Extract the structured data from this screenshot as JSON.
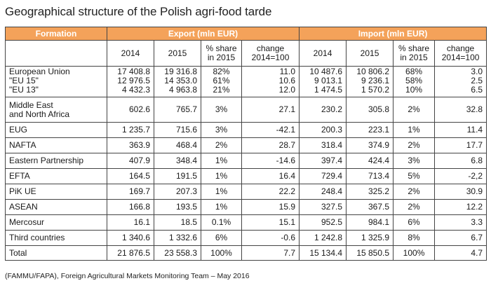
{
  "title": "Geographical structure of the Polish agri-food tarde",
  "header": {
    "formation": "Formation",
    "export": "Export (mln EUR)",
    "import": "Import (mln EUR)"
  },
  "subheader": {
    "y2014": "2014",
    "y2015": "2015",
    "share": "% share in 2015",
    "change": "change 2014=100"
  },
  "rows": [
    {
      "label": "European Union\n\"EU 15\"\n\"EU 13\"",
      "exp2014": "17 408.8\n12 976.5\n4 432.3",
      "exp2015": "19 316.8\n14 353.0\n4 963.8",
      "expShare": "82%\n61%\n21%",
      "expChange": "11.0\n10.6\n12.0",
      "imp2014": "10 487.6\n9 013.1\n1 474.5",
      "imp2015": "10 806.2\n9 236.1\n1 570.2",
      "impShare": "68%\n58%\n10%",
      "impChange": "3.0\n2.5\n6.5"
    },
    {
      "label": "Middle East\nand North Africa",
      "exp2014": "602.6",
      "exp2015": "765.7",
      "expShare": "3%",
      "expChange": "27.1",
      "imp2014": "230.2",
      "imp2015": "305.8",
      "impShare": "2%",
      "impChange": "32.8"
    },
    {
      "label": "EUG",
      "exp2014": "1 235.7",
      "exp2015": "715.6",
      "expShare": "3%",
      "expChange": "-42.1",
      "imp2014": "200.3",
      "imp2015": "223.1",
      "impShare": "1%",
      "impChange": "11.4"
    },
    {
      "label": "NAFTA",
      "exp2014": "363.9",
      "exp2015": "468.4",
      "expShare": "2%",
      "expChange": "28.7",
      "imp2014": "318.4",
      "imp2015": "374.9",
      "impShare": "2%",
      "impChange": "17.7"
    },
    {
      "label": "Eastern Partnership",
      "exp2014": "407.9",
      "exp2015": "348.4",
      "expShare": "1%",
      "expChange": "-14.6",
      "imp2014": "397.4",
      "imp2015": "424.4",
      "impShare": "3%",
      "impChange": "6.8"
    },
    {
      "label": "EFTA",
      "exp2014": "164.5",
      "exp2015": "191.5",
      "expShare": "1%",
      "expChange": "16.4",
      "imp2014": "729.4",
      "imp2015": "713.4",
      "impShare": "5%",
      "impChange": "-2,2"
    },
    {
      "label": "PiK UE",
      "exp2014": "169.7",
      "exp2015": "207.3",
      "expShare": "1%",
      "expChange": "22.2",
      "imp2014": "248.4",
      "imp2015": "325.2",
      "impShare": "2%",
      "impChange": "30.9"
    },
    {
      "label": "ASEAN",
      "exp2014": "166.8",
      "exp2015": "193.5",
      "expShare": "1%",
      "expChange": "15.9",
      "imp2014": "327.5",
      "imp2015": "367.5",
      "impShare": "2%",
      "impChange": "12.2"
    },
    {
      "label": "Mercosur",
      "exp2014": "16.1",
      "exp2015": "18.5",
      "expShare": "0.1%",
      "expChange": "15.1",
      "imp2014": "952.5",
      "imp2015": "984.1",
      "impShare": "6%",
      "impChange": "3.3"
    },
    {
      "label": "Third countries",
      "exp2014": "1 340.6",
      "exp2015": "1 332.6",
      "expShare": "6%",
      "expChange": "-0.6",
      "imp2014": "1 242.8",
      "imp2015": "1 325.9",
      "impShare": "8%",
      "impChange": "6.7"
    }
  ],
  "total": {
    "label": "Total",
    "exp2014": "21 876.5",
    "exp2015": "23 558.3",
    "expShare": "100%",
    "expChange": "7.7",
    "imp2014": "15 134.4",
    "imp2015": "15 850.5",
    "impShare": "100%",
    "impChange": "4.7"
  },
  "footer": "(FAMMU/FAPA), Foreign Agricultural Markets Monitoring Team – May 2016"
}
